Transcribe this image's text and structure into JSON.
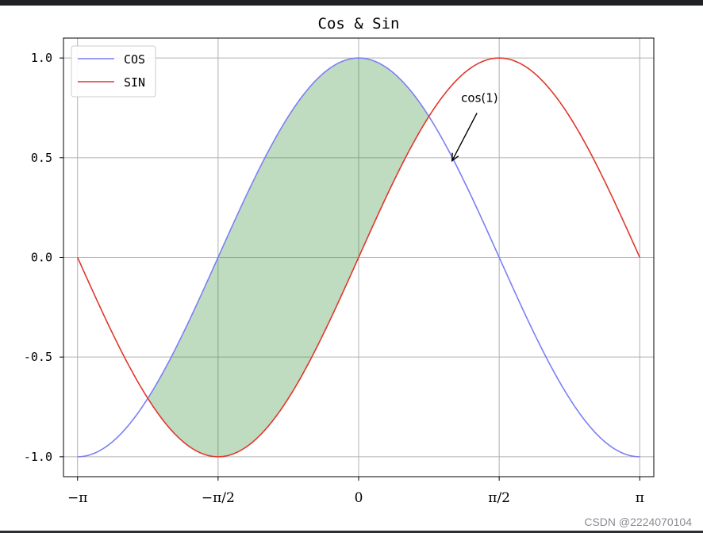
{
  "chart_data": {
    "type": "line",
    "title": "Cos & Sin",
    "xlabel": "",
    "ylabel": "",
    "xlim": [
      -3.2987,
      3.2987
    ],
    "ylim": [
      -1.1,
      1.1
    ],
    "xticks": [
      -3.14159,
      -1.5708,
      0,
      1.5708,
      3.14159
    ],
    "xtick_labels": [
      "−π",
      "−π/2",
      "0",
      "π/2",
      "π"
    ],
    "yticks": [
      -1.0,
      -0.5,
      0.0,
      0.5,
      1.0
    ],
    "ytick_labels": [
      "-1.0",
      "-0.5",
      "0.0",
      "0.5",
      "1.0"
    ],
    "grid": true,
    "legend_placement": "upper-left",
    "x": [
      -3.14159,
      -2.74889,
      -2.35619,
      -1.9635,
      -1.5708,
      -1.1781,
      -0.7854,
      -0.3927,
      0,
      0.3927,
      0.7854,
      1.1781,
      1.5708,
      1.9635,
      2.35619,
      2.74889,
      3.14159
    ],
    "series": [
      {
        "name": "COS",
        "color": "#7b7ff5",
        "values": [
          -1.0,
          -0.924,
          -0.707,
          -0.383,
          0.0,
          0.383,
          0.707,
          0.924,
          1.0,
          0.924,
          0.707,
          0.383,
          0.0,
          -0.383,
          -0.707,
          -0.924,
          -1.0
        ]
      },
      {
        "name": "SIN",
        "color": "#e0372c",
        "values": [
          0.0,
          -0.383,
          -0.707,
          -0.924,
          -1.0,
          -0.924,
          -0.707,
          -0.383,
          0.0,
          0.383,
          0.707,
          0.924,
          1.0,
          0.924,
          0.707,
          0.383,
          0.0
        ]
      }
    ],
    "fill_between": {
      "x_range": [
        -2.35619,
        0.7854
      ],
      "color": "#2e8b2e",
      "alpha": 0.3
    },
    "annotation": {
      "text": "cos(1)",
      "point": [
        1.0,
        0.5403
      ],
      "text_pos": [
        1.5,
        0.78
      ]
    }
  },
  "watermark": "CSDN @2224070104"
}
